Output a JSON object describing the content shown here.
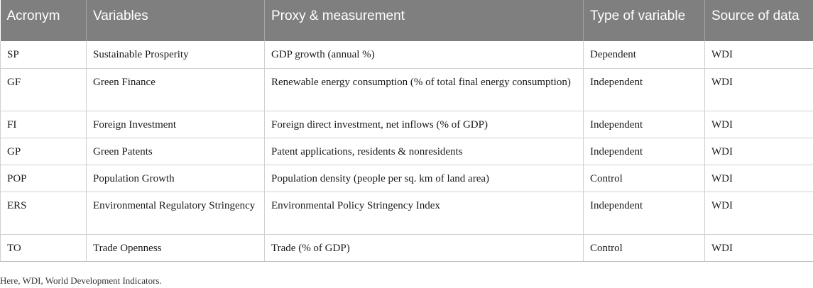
{
  "table": {
    "headers": [
      "Acronym",
      "Variables",
      "Proxy & measurement",
      "Type of variable",
      "Source of data"
    ],
    "rows": [
      {
        "acronym": "SP",
        "variable": "Sustainable Prosperity",
        "proxy": "GDP growth (annual %)",
        "type": "Dependent",
        "source": "WDI"
      },
      {
        "acronym": "GF",
        "variable": "Green Finance",
        "proxy": "Renewable energy consumption (% of total final energy consumption)",
        "type": "Independent",
        "source": "WDI"
      },
      {
        "acronym": "FI",
        "variable": "Foreign Investment",
        "proxy": "Foreign direct investment, net inflows (% of GDP)",
        "type": "Independent",
        "source": "WDI"
      },
      {
        "acronym": "GP",
        "variable": "Green Patents",
        "proxy": "Patent applications, residents & nonresidents",
        "type": "Independent",
        "source": "WDI"
      },
      {
        "acronym": "POP",
        "variable": "Population Growth",
        "proxy": "Population density (people per sq. km of land area)",
        "type": "Control",
        "source": "WDI"
      },
      {
        "acronym": "ERS",
        "variable": "Environmental Regulatory Stringency",
        "proxy": "Environmental Policy Stringency Index",
        "type": "Independent",
        "source": "WDI"
      },
      {
        "acronym": "TO",
        "variable": "Trade Openness",
        "proxy": "Trade (% of GDP)",
        "type": "Control",
        "source": "WDI"
      }
    ]
  },
  "footnote": "Here, WDI, World Development Indicators."
}
